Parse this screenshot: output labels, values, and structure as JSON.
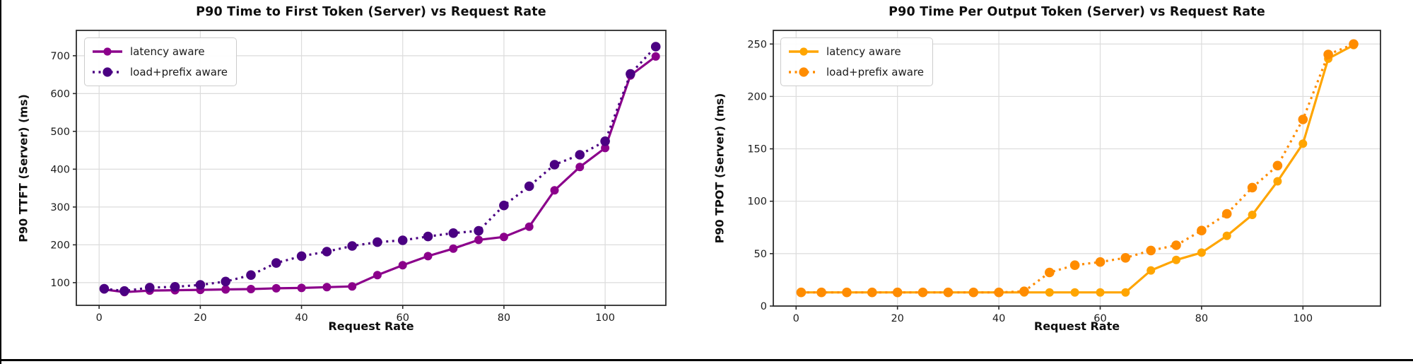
{
  "figure": {
    "background": "#ffffff",
    "edge_color": "#000000",
    "grid_color": "#dcdcdc",
    "spine_color": "#2b2b2b"
  },
  "chart_data": [
    {
      "type": "line",
      "title": "P90 Time to First Token (Server) vs Request Rate",
      "xlabel": "Request Rate",
      "ylabel": "P90 TTFT (Server) (ms)",
      "grid": true,
      "legend_position": "upper-left",
      "x": [
        1,
        5,
        10,
        15,
        20,
        25,
        30,
        35,
        40,
        45,
        50,
        55,
        60,
        65,
        70,
        75,
        80,
        85,
        90,
        95,
        100,
        105,
        110
      ],
      "xticks": [
        0,
        20,
        40,
        60,
        80,
        100
      ],
      "yticks": [
        100,
        200,
        300,
        400,
        500,
        600,
        700
      ],
      "xlim": [
        -4.5,
        112
      ],
      "ylim": [
        40,
        767
      ],
      "series": [
        {
          "name": "latency aware",
          "style": "solid",
          "color": "#8B008B",
          "values": [
            82,
            75,
            79,
            80,
            81,
            82,
            83,
            85,
            86,
            88,
            90,
            120,
            146,
            170,
            190,
            213,
            221,
            248,
            344,
            406,
            456,
            648,
            698
          ]
        },
        {
          "name": "load+prefix aware",
          "style": "dotted",
          "color": "#4B0082",
          "values": [
            84,
            78,
            87,
            89,
            94,
            103,
            120,
            152,
            170,
            182,
            197,
            207,
            212,
            222,
            231,
            237,
            304,
            355,
            412,
            438,
            474,
            652,
            724
          ]
        }
      ]
    },
    {
      "type": "line",
      "title": "P90 Time Per Output Token (Server) vs Request Rate",
      "xlabel": "Request Rate",
      "ylabel": "P90 TPOT (Server) (ms)",
      "grid": true,
      "legend_position": "upper-left",
      "x": [
        1,
        5,
        10,
        15,
        20,
        25,
        30,
        35,
        40,
        45,
        50,
        55,
        60,
        65,
        70,
        75,
        80,
        85,
        90,
        95,
        100,
        105,
        110
      ],
      "xticks": [
        0,
        20,
        40,
        60,
        80,
        100
      ],
      "yticks": [
        0,
        50,
        100,
        150,
        200,
        250
      ],
      "xlim": [
        -4.5,
        115.3
      ],
      "ylim": [
        0,
        263
      ],
      "series": [
        {
          "name": "latency aware",
          "style": "solid",
          "color": "#FFA500",
          "values": [
            13,
            13,
            13,
            13,
            13,
            13,
            13,
            13,
            13,
            13,
            13,
            13,
            13,
            13,
            34,
            44,
            51,
            67,
            87,
            119,
            155,
            236,
            249
          ]
        },
        {
          "name": "load+prefix aware",
          "style": "dotted",
          "color": "#FF8C00",
          "values": [
            13,
            13,
            13,
            13,
            13,
            13,
            13,
            13,
            13,
            14,
            32,
            39,
            42,
            46,
            53,
            58,
            72,
            88,
            113,
            134,
            178,
            240,
            250
          ]
        }
      ]
    }
  ]
}
